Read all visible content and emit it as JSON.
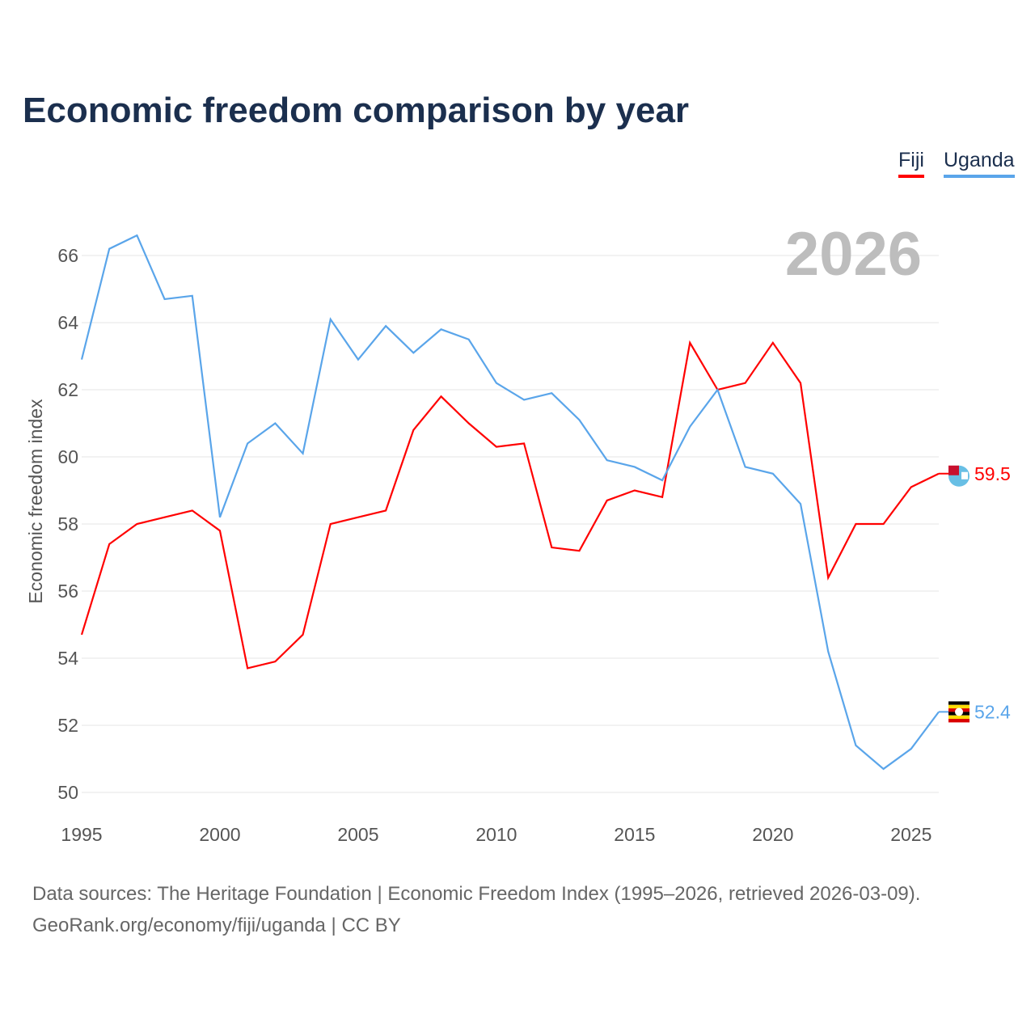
{
  "title": "Economic freedom comparison by year",
  "legend": [
    "Fiji",
    "Uganda"
  ],
  "year_watermark": "2026",
  "footer": {
    "line1": "Data sources: The Heritage Foundation | Economic Freedom Index (1995–2026, retrieved 2026-03-09).",
    "line2": "GeoRank.org/economy/fiji/uganda | CC BY"
  },
  "chart_data": {
    "type": "line",
    "title": "Economic freedom comparison by year",
    "xlabel": "",
    "ylabel": "Economic freedom index",
    "xlim": [
      1995,
      2026
    ],
    "ylim": [
      50,
      66
    ],
    "x_ticks": [
      1995,
      2000,
      2005,
      2010,
      2015,
      2020,
      2025
    ],
    "y_ticks": [
      50,
      52,
      54,
      56,
      58,
      60,
      62,
      64,
      66
    ],
    "grid": true,
    "legend_position": "top-right",
    "x": [
      1995,
      1996,
      1997,
      1998,
      1999,
      2000,
      2001,
      2002,
      2003,
      2004,
      2005,
      2006,
      2007,
      2008,
      2009,
      2010,
      2011,
      2012,
      2013,
      2014,
      2015,
      2016,
      2017,
      2018,
      2019,
      2020,
      2021,
      2022,
      2023,
      2024,
      2025,
      2026
    ],
    "series": [
      {
        "name": "Fiji",
        "color": "#ff0000",
        "end_label": "59.5",
        "values": [
          54.7,
          57.4,
          58.0,
          58.2,
          58.4,
          57.8,
          53.7,
          53.9,
          54.7,
          58.0,
          58.2,
          58.4,
          60.8,
          61.8,
          61.0,
          60.3,
          60.4,
          57.3,
          57.2,
          58.7,
          59.0,
          58.8,
          63.4,
          62.0,
          62.2,
          63.4,
          62.2,
          56.4,
          58.0,
          58.0,
          59.1,
          59.5
        ]
      },
      {
        "name": "Uganda",
        "color": "#5aa5ea",
        "end_label": "52.4",
        "values": [
          62.9,
          66.2,
          66.6,
          64.7,
          64.8,
          58.2,
          60.4,
          61.0,
          60.1,
          64.1,
          62.9,
          63.9,
          63.1,
          63.8,
          63.5,
          62.2,
          61.7,
          61.9,
          61.1,
          59.9,
          59.7,
          59.3,
          60.9,
          62.0,
          59.7,
          59.5,
          58.6,
          54.2,
          51.4,
          50.7,
          51.3,
          52.4
        ]
      }
    ]
  }
}
